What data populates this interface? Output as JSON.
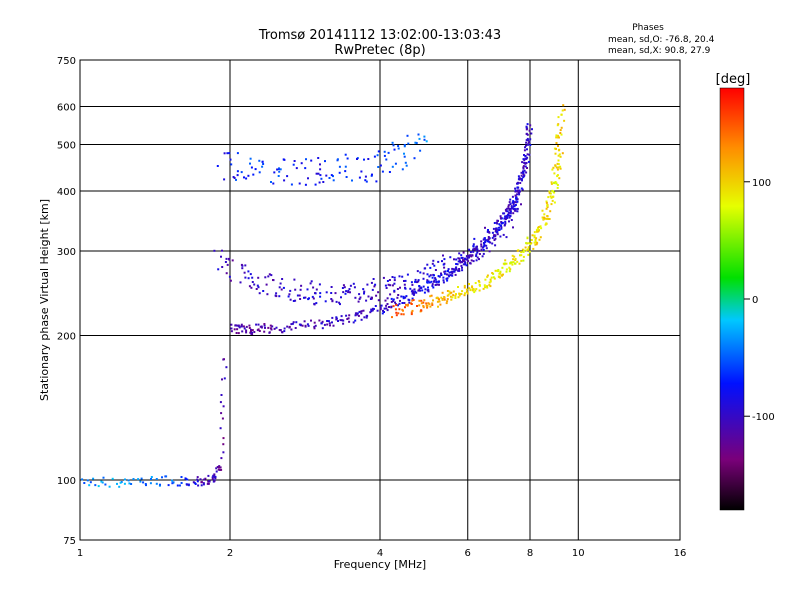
{
  "chart_data": {
    "type": "scatter",
    "title": "Tromsø 20141112 13:02:00-13:03:43",
    "subtitle": "RwPretec (8p)",
    "xlabel": "Frequency [MHz]",
    "ylabel": "Stationary phase Virtual Height [km]",
    "x_scale": "log",
    "y_scale": "log",
    "xlim": [
      1,
      16
    ],
    "ylim": [
      75,
      750
    ],
    "x_ticks": [
      1,
      2,
      4,
      6,
      8,
      10,
      16
    ],
    "x_tick_labels": [
      "1",
      "2",
      "4",
      "6",
      "8",
      "10",
      "16"
    ],
    "y_ticks": [
      75,
      100,
      200,
      300,
      400,
      500,
      600,
      750
    ],
    "y_tick_labels": [
      "75",
      "100",
      "200",
      "300",
      "400",
      "500",
      "600",
      "750"
    ],
    "grid": true,
    "phases_box": {
      "heading": "Phases",
      "line_o": "mean, sd,O: -76.8, 20.4",
      "line_x": "mean, sd,X:  90.8, 27.9"
    },
    "colorbar": {
      "label": "[deg]",
      "range": [
        -180,
        180
      ],
      "ticks": [
        100,
        0,
        -100
      ],
      "tick_labels": [
        "100",
        "0",
        "-100"
      ]
    },
    "trace_o_lower": {
      "x": [
        2.0,
        2.2,
        2.5,
        3.0,
        3.5,
        4.0,
        4.5,
        5.0,
        5.5,
        6.0,
        6.5,
        7.0,
        7.3,
        7.5,
        7.7,
        7.85,
        7.95
      ],
      "y": [
        208,
        207,
        208,
        212,
        218,
        228,
        240,
        255,
        270,
        290,
        315,
        345,
        370,
        395,
        430,
        480,
        560
      ],
      "phase": [
        -110,
        -115,
        -110,
        -105,
        -100,
        -95,
        -90,
        -85,
        -90,
        -100,
        -95,
        -90,
        -95,
        -90,
        -100,
        -95,
        -100
      ]
    },
    "trace_o_upper": {
      "x": [
        1.9,
        2.2,
        2.6,
        3.0,
        3.5,
        4.0,
        4.5,
        5.0,
        5.5,
        6.0,
        6.5,
        7.0,
        7.5
      ],
      "y": [
        290,
        262,
        250,
        245,
        246,
        250,
        258,
        268,
        280,
        295,
        315,
        340,
        380
      ],
      "phase": [
        -105,
        -100,
        -100,
        -95,
        -95,
        -100,
        -95,
        -90,
        -95,
        -100,
        -95,
        -95,
        -100
      ]
    },
    "trace_x": {
      "x": [
        4.2,
        4.8,
        5.2,
        5.7,
        6.2,
        6.8,
        7.3,
        7.8,
        8.2,
        8.6,
        8.9,
        9.1,
        9.2
      ],
      "y": [
        225,
        232,
        238,
        245,
        255,
        268,
        282,
        300,
        325,
        360,
        410,
        480,
        600
      ],
      "phase": [
        150,
        140,
        120,
        100,
        95,
        90,
        85,
        90,
        95,
        100,
        90,
        95,
        100
      ]
    },
    "trace_f1_low": {
      "x": [
        1.0,
        1.2,
        1.4,
        1.6,
        1.75,
        1.85,
        1.9,
        1.95
      ],
      "y": [
        100,
        99,
        100,
        100,
        100,
        101,
        108,
        190
      ],
      "phase": [
        -40,
        -30,
        -40,
        -60,
        -110,
        -100,
        -120,
        -110
      ]
    },
    "cluster_f2_upper": {
      "x": [
        1.95,
        2.1,
        2.4,
        2.7,
        3.0,
        3.3,
        3.7,
        4.1,
        4.4,
        5.0
      ],
      "y": [
        450,
        455,
        440,
        435,
        445,
        450,
        440,
        460,
        480,
        510
      ],
      "phase": [
        -90,
        -60,
        -60,
        -70,
        -80,
        -60,
        -70,
        -60,
        -50,
        -40
      ]
    }
  }
}
